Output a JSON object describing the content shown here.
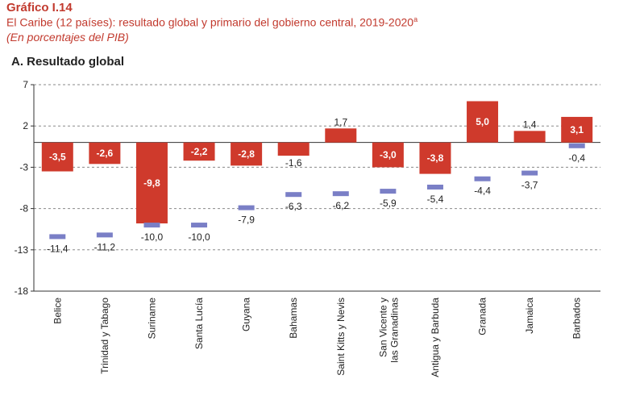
{
  "header": {
    "label": "Gráfico I.14",
    "title": "El Caribe (12 países): resultado global y primario del gobierno central, 2019-2020",
    "title_sup": "a",
    "subtitle": "(En porcentajes del PIB)"
  },
  "chart_data": {
    "type": "bar",
    "title": "A. Resultado global",
    "xlabel": "",
    "ylabel": "",
    "ylim": [
      -18,
      7
    ],
    "yticks": [
      7,
      2,
      -3,
      -8,
      -13,
      -18
    ],
    "grid": true,
    "categories": [
      "Belice",
      "Trinidad y Tabago",
      "Suriname",
      "Santa Lucía",
      "Guyana",
      "Bahamas",
      "Saint Kitts y Nevis",
      "San Vicente y las Granadinas",
      "Antigua y Barbuda",
      "Granada",
      "Jamaica",
      "Barbados"
    ],
    "series": [
      {
        "type": "bar",
        "color": "#cf3a2c",
        "values": [
          -3.5,
          -2.6,
          -9.8,
          -2.2,
          -2.8,
          -1.6,
          1.7,
          -3.0,
          -3.8,
          5.0,
          1.4,
          3.1
        ],
        "labels": [
          "-3,5",
          "-2,6",
          "-9,8",
          "-2,2",
          "-2,8",
          "-1,6",
          "1,7",
          "-3,0",
          "-3,8",
          "5,0",
          "1,4",
          "3,1"
        ]
      },
      {
        "type": "marker",
        "color": "#7a7fc6",
        "values": [
          -11.4,
          -11.2,
          -10.0,
          -10.0,
          -7.9,
          -6.3,
          -6.2,
          -5.9,
          -5.4,
          -4.4,
          -3.7,
          -0.4
        ],
        "labels": [
          "-11,4",
          "-11,2",
          "-10,0",
          "-10,0",
          "-7,9",
          "-6,3",
          "-6,2",
          "-5,9",
          "-5,4",
          "-4,4",
          "-3,7",
          "-0,4"
        ]
      }
    ]
  }
}
